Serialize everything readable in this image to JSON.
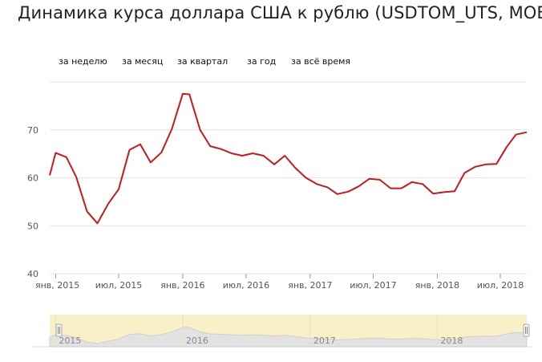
{
  "title": "Динамика курса доллара США к рублю (USDTOM_UTS, MOEX)",
  "tabs": [
    {
      "label": "за неделю"
    },
    {
      "label": "за месяц"
    },
    {
      "label": "за квартал"
    },
    {
      "label": "за год"
    },
    {
      "label": "за всё время"
    }
  ],
  "colors": {
    "series": "#c8191c",
    "navigator_fill": "#faf0c8",
    "grid": "#e6e6e6"
  },
  "chart_data": {
    "type": "line",
    "title": "Динамика курса доллара США к рублю (USDTOM_UTS, MOEX)",
    "xlabel": "",
    "ylabel": "",
    "ylim": [
      40,
      80
    ],
    "yticks": [
      40,
      50,
      60,
      70
    ],
    "xlim": [
      "2014-12-15",
      "2018-09-15"
    ],
    "xticks": [
      {
        "date": "2015-01-01",
        "label": "янв, 2015"
      },
      {
        "date": "2015-07-01",
        "label": "июл, 2015"
      },
      {
        "date": "2016-01-01",
        "label": "янв, 2016"
      },
      {
        "date": "2016-07-01",
        "label": "июл, 2016"
      },
      {
        "date": "2017-01-01",
        "label": "янв, 2017"
      },
      {
        "date": "2017-07-01",
        "label": "июл, 2017"
      },
      {
        "date": "2018-01-01",
        "label": "янв, 2018"
      },
      {
        "date": "2018-07-01",
        "label": "июл, 2018"
      }
    ],
    "navigator_labels": [
      {
        "date": "2015-01-01",
        "label": "2015"
      },
      {
        "date": "2016-01-01",
        "label": "2016"
      },
      {
        "date": "2017-01-01",
        "label": "2017"
      },
      {
        "date": "2018-01-01",
        "label": "2018"
      }
    ],
    "grid": true,
    "series": [
      {
        "name": "",
        "x": [
          "2014-12-15",
          "2015-01-01",
          "2015-02-01",
          "2015-03-01",
          "2015-04-01",
          "2015-05-01",
          "2015-06-01",
          "2015-07-01",
          "2015-08-01",
          "2015-09-01",
          "2015-10-01",
          "2015-11-01",
          "2015-12-01",
          "2016-01-01",
          "2016-01-20",
          "2016-02-20",
          "2016-03-20",
          "2016-04-20",
          "2016-05-20",
          "2016-06-20",
          "2016-07-20",
          "2016-08-20",
          "2016-09-20",
          "2016-10-20",
          "2016-11-20",
          "2016-12-20",
          "2017-01-20",
          "2017-02-20",
          "2017-03-20",
          "2017-04-20",
          "2017-05-20",
          "2017-06-20",
          "2017-07-20",
          "2017-08-20",
          "2017-09-20",
          "2017-10-20",
          "2017-11-20",
          "2017-12-20",
          "2018-01-20",
          "2018-02-20",
          "2018-03-20",
          "2018-04-20",
          "2018-05-20",
          "2018-06-20",
          "2018-07-20",
          "2018-08-15",
          "2018-09-15"
        ],
        "y": [
          60.5,
          65.2,
          64.3,
          60.2,
          53.0,
          50.5,
          54.6,
          57.6,
          65.8,
          67.0,
          63.2,
          65.3,
          70.2,
          77.5,
          77.4,
          70.0,
          66.6,
          66.0,
          65.1,
          64.6,
          65.1,
          64.6,
          62.8,
          64.6,
          62.0,
          60.0,
          58.7,
          58.0,
          56.6,
          57.1,
          58.2,
          59.8,
          59.6,
          57.8,
          57.8,
          59.1,
          58.7,
          56.7,
          57.0,
          57.2,
          61.0,
          62.3,
          62.8,
          62.9,
          66.5,
          69.0,
          69.5
        ]
      }
    ]
  }
}
